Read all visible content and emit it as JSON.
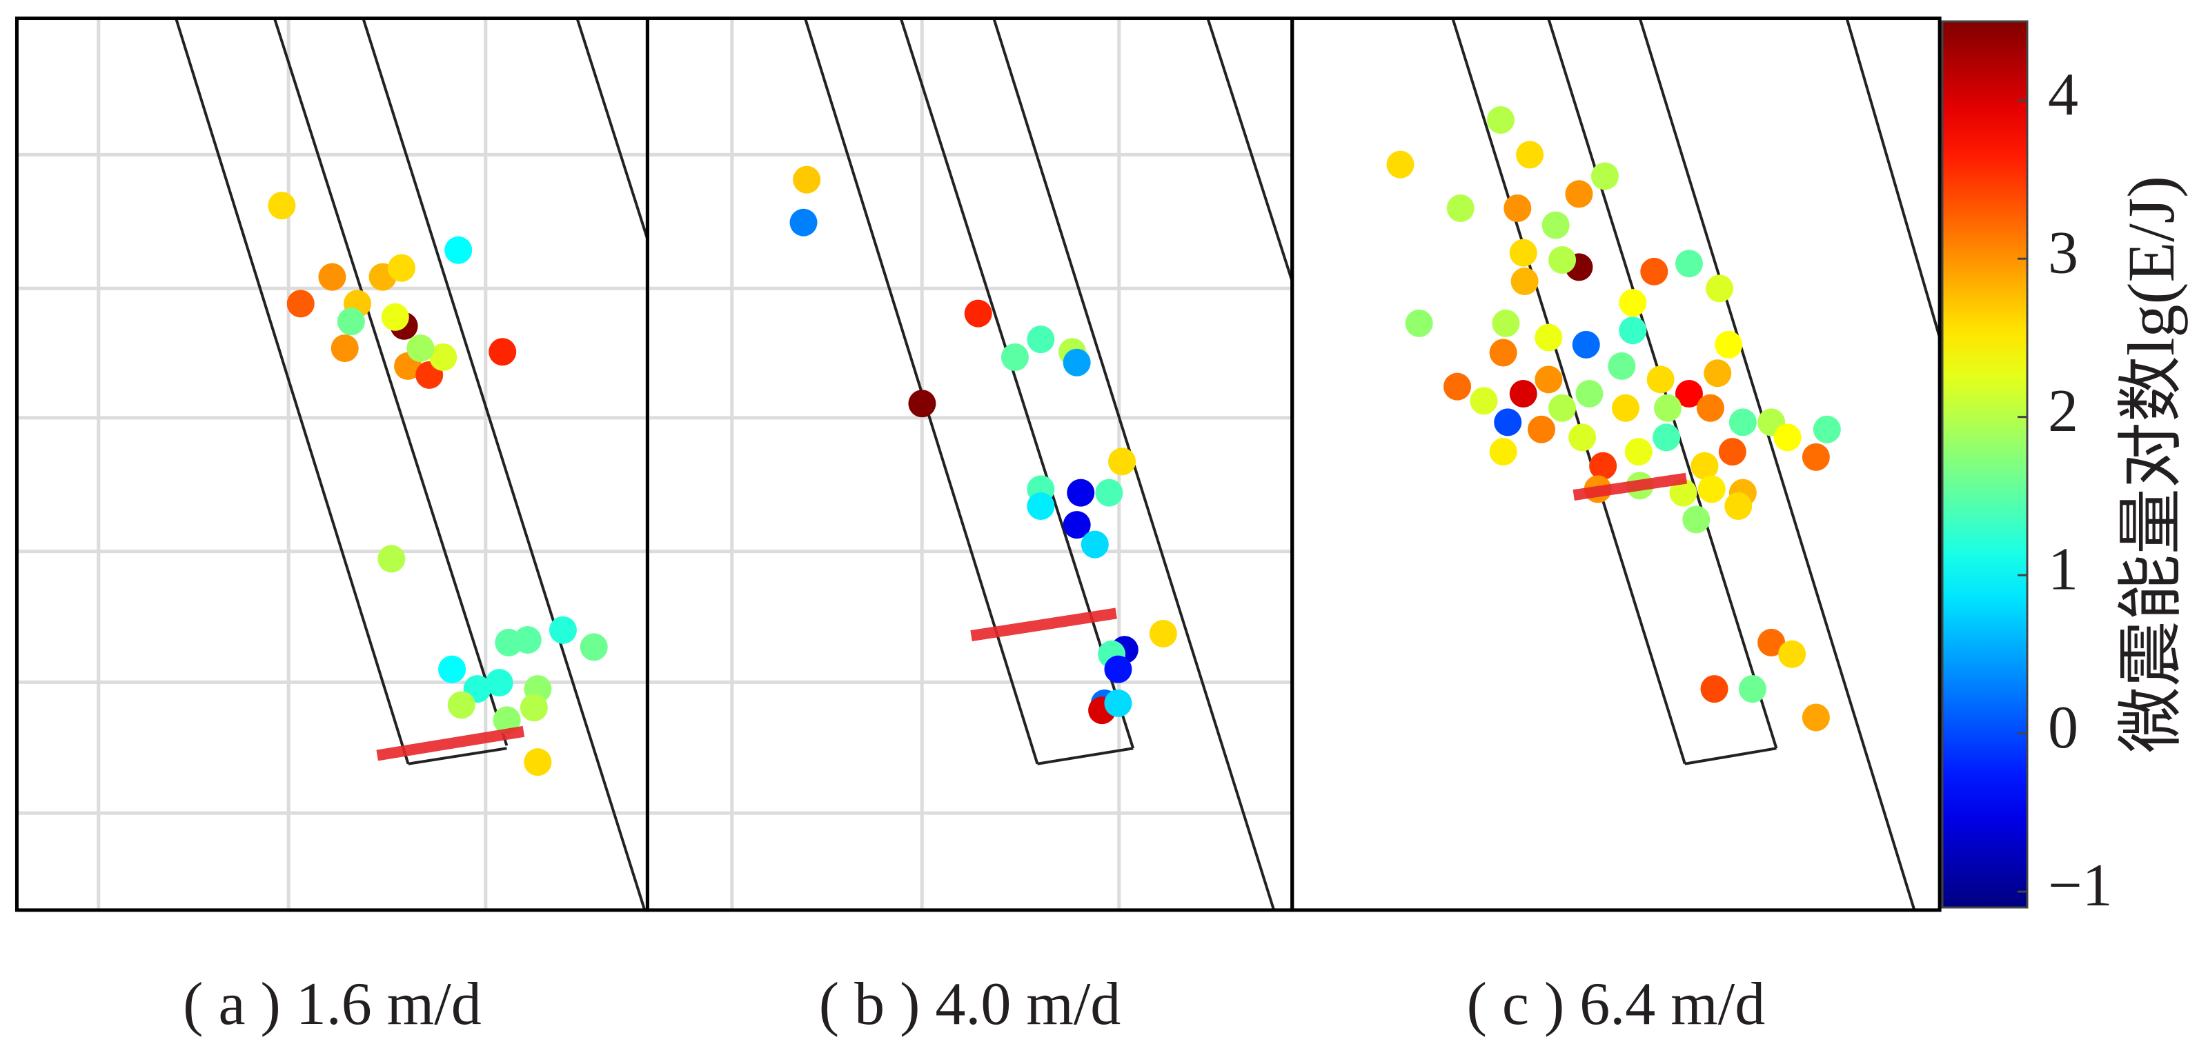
{
  "chart_data": [
    {
      "type": "scatter",
      "caption": "( a ) 1.6 m/d",
      "grid": true,
      "x": [
        42,
        45,
        50,
        54,
        58,
        61,
        53,
        61.4,
        60,
        52,
        62,
        65.4,
        67.6,
        64,
        77,
        70,
        59.4,
        69,
        73,
        76.5,
        70.5,
        78,
        81,
        86.6,
        91.5,
        82.6,
        77.7,
        82.6,
        82
      ],
      "y": [
        79,
        68,
        71,
        68,
        71,
        72,
        66,
        65.5,
        66.5,
        63,
        61,
        60,
        62,
        63,
        62.6,
        74,
        39.4,
        27,
        24.8,
        25.5,
        23,
        30,
        30.3,
        31.4,
        29.5,
        24.8,
        21.3,
        16.6,
        22.7
      ],
      "values": [
        2.6,
        3.3,
        3.0,
        2.7,
        2.8,
        2.6,
        1.6,
        4.5,
        2.3,
        3.0,
        3.0,
        3.5,
        2.2,
        1.9,
        3.6,
        1.0,
        2.0,
        1.0,
        1.2,
        1.2,
        2.0,
        1.5,
        1.5,
        1.2,
        1.6,
        1.8,
        1.8,
        2.6,
        2.0
      ]
    },
    {
      "type": "scatter",
      "caption": "( b ) 4.0 m/d",
      "grid": true,
      "x": [
        24.7,
        24.2,
        51.3,
        42.6,
        57,
        61,
        65.9,
        66.6,
        73.6,
        61,
        67.2,
        71.6,
        61,
        66.6,
        69.4,
        80,
        74,
        72,
        73,
        70.9,
        70.5,
        73
      ],
      "y": [
        81.9,
        77.1,
        66.9,
        56.8,
        62,
        64,
        62.6,
        61.4,
        50.3,
        47.2,
        46.8,
        46.8,
        45.3,
        43.2,
        41,
        31,
        29.2,
        28.7,
        27,
        23.2,
        22.4,
        23.2
      ],
      "values": [
        2.7,
        0.3,
        3.6,
        4.5,
        1.5,
        1.4,
        2.0,
        0.5,
        2.6,
        1.4,
        -0.5,
        1.4,
        0.9,
        -0.5,
        0.8,
        2.6,
        -0.6,
        1.4,
        -0.3,
        0.2,
        4.0,
        0.8
      ]
    },
    {
      "type": "scatter",
      "caption": "( c ) 6.4 m/d",
      "grid": false,
      "x": [
        16.7,
        32.2,
        36.7,
        26,
        34.8,
        44.3,
        48.3,
        40.7,
        35.7,
        44.3,
        41.7,
        35.9,
        55.9,
        61.3,
        66,
        52.6,
        19.6,
        33,
        39.6,
        52.6,
        25.5,
        35.7,
        32.6,
        29.6,
        39.6,
        45.9,
        50.9,
        56.9,
        61.3,
        65.7,
        69.6,
        74,
        80.9,
        82.6,
        38.5,
        32.6,
        44.8,
        48,
        53.5,
        57.8,
        63.7,
        68,
        47.2,
        53.7,
        60.4,
        64.8,
        69.6,
        62.4,
        68.9,
        76.5,
        41.7,
        51.5,
        58,
        64.6,
        67.4,
        33.3,
        45.4,
        74,
        77.2,
        65.2,
        71.1,
        80.9
      ],
      "y": [
        83.6,
        88.6,
        84.7,
        78.7,
        78.7,
        80.3,
        82.3,
        76.8,
        73.7,
        72.1,
        72.9,
        70.5,
        71.6,
        72.5,
        69.7,
        68.1,
        65.8,
        65.8,
        64.2,
        65,
        58.7,
        57.9,
        62.5,
        57.1,
        59.5,
        57.9,
        61,
        59.5,
        57.9,
        60.2,
        54.7,
        54.7,
        50.8,
        53.9,
        53.9,
        51.4,
        53,
        49.8,
        51.4,
        53,
        49.8,
        51.4,
        47.2,
        47.6,
        46.8,
        47.2,
        46.8,
        43.8,
        45.3,
        53,
        56.3,
        56.3,
        56.3,
        56.3,
        63.4,
        54.7,
        63.4,
        30,
        28.7,
        24.8,
        24.8,
        21.6
      ],
      "values": [
        2.6,
        2.0,
        2.6,
        2.0,
        3.0,
        3.0,
        2.0,
        1.9,
        2.6,
        4.5,
        2.0,
        2.8,
        3.3,
        1.5,
        2.2,
        2.4,
        1.8,
        2.0,
        2.3,
        1.3,
        3.2,
        4.0,
        3.1,
        2.2,
        3.0,
        1.8,
        1.6,
        2.6,
        3.8,
        2.8,
        1.5,
        2.0,
        3.2,
        1.5,
        3.1,
        2.5,
        2.2,
        3.5,
        2.3,
        1.4,
        2.6,
        3.3,
        3.0,
        1.9,
        2.2,
        2.5,
        2.8,
        1.8,
        2.6,
        2.4,
        2.0,
        2.6,
        1.9,
        3.1,
        2.4,
        0.0,
        0.2,
        3.2,
        2.6,
        3.4,
        1.6,
        2.9
      ]
    },
    {
      "type": "colorbar",
      "label": "微震能量对数lg(E/J)",
      "colormap": "jet",
      "zlim": [
        -1.1,
        4.5
      ],
      "zticks": [
        {
          "value": -1,
          "label": "−1"
        },
        0,
        1,
        2,
        3,
        4
      ]
    }
  ]
}
